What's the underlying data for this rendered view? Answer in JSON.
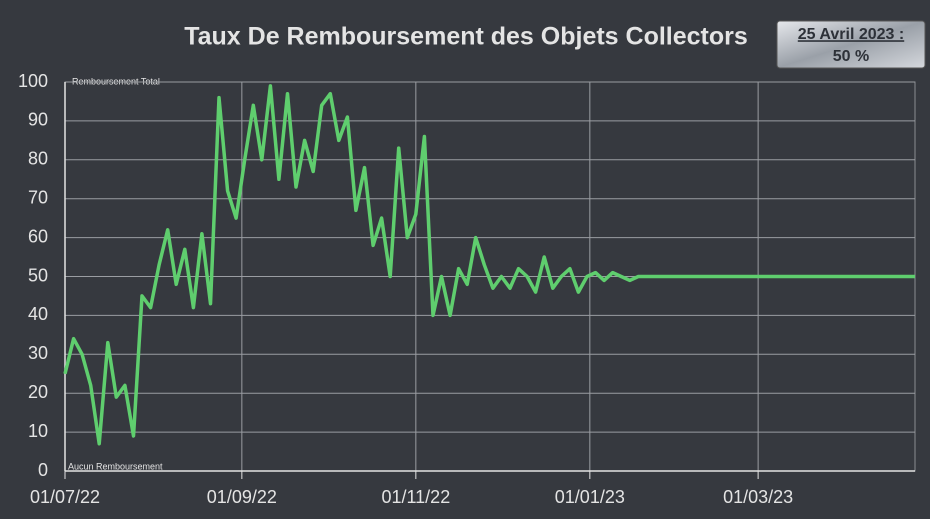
{
  "chart_data": {
    "type": "line",
    "title": "Taux De Remboursement des Objets Collectors",
    "badge": {
      "date": "25 Avril 2023 :",
      "value": "50 %"
    },
    "annotations": [
      "Remboursement Total",
      "Aucun Remboursement"
    ],
    "x": [
      "2022-07-01",
      "2022-07-04",
      "2022-07-07",
      "2022-07-10",
      "2022-07-13",
      "2022-07-16",
      "2022-07-19",
      "2022-07-22",
      "2022-07-25",
      "2022-07-28",
      "2022-07-31",
      "2022-08-03",
      "2022-08-06",
      "2022-08-09",
      "2022-08-12",
      "2022-08-15",
      "2022-08-18",
      "2022-08-21",
      "2022-08-24",
      "2022-08-27",
      "2022-08-30",
      "2022-09-02",
      "2022-09-05",
      "2022-09-08",
      "2022-09-11",
      "2022-09-14",
      "2022-09-17",
      "2022-09-20",
      "2022-09-23",
      "2022-09-26",
      "2022-09-29",
      "2022-10-02",
      "2022-10-05",
      "2022-10-08",
      "2022-10-11",
      "2022-10-14",
      "2022-10-17",
      "2022-10-20",
      "2022-10-23",
      "2022-10-26",
      "2022-10-29",
      "2022-11-01",
      "2022-11-04",
      "2022-11-07",
      "2022-11-10",
      "2022-11-13",
      "2022-11-16",
      "2022-11-19",
      "2022-11-22",
      "2022-11-25",
      "2022-11-28",
      "2022-12-01",
      "2022-12-04",
      "2022-12-07",
      "2022-12-10",
      "2022-12-13",
      "2022-12-16",
      "2022-12-19",
      "2022-12-22",
      "2022-12-25",
      "2022-12-28",
      "2022-12-31",
      "2023-01-03",
      "2023-01-06",
      "2023-01-09",
      "2023-01-12",
      "2023-01-15",
      "2023-01-18",
      "2023-01-21",
      "2023-04-25"
    ],
    "series": [
      {
        "name": "Taux",
        "color": "#5fce6e",
        "values": [
          25,
          34,
          30,
          22,
          7,
          33,
          19,
          22,
          9,
          45,
          42,
          53,
          62,
          48,
          57,
          42,
          61,
          43,
          96,
          72,
          65,
          80,
          94,
          80,
          99,
          75,
          97,
          73,
          85,
          77,
          94,
          97,
          85,
          91,
          67,
          78,
          58,
          65,
          50,
          83,
          60,
          66,
          86,
          40,
          50,
          40,
          52,
          48,
          60,
          53,
          47,
          50,
          47,
          52,
          50,
          46,
          55,
          47,
          50,
          52,
          46,
          50,
          51,
          49,
          51,
          50,
          49,
          50,
          50,
          50
        ]
      }
    ],
    "xlim": [
      "2022-07-01",
      "2023-04-25"
    ],
    "xticks": [
      {
        "value": "2022-07-01",
        "label": "01/07/22"
      },
      {
        "value": "2022-09-01",
        "label": "01/09/22"
      },
      {
        "value": "2022-11-01",
        "label": "01/11/22"
      },
      {
        "value": "2023-01-01",
        "label": "01/01/23"
      },
      {
        "value": "2023-03-01",
        "label": "01/03/23"
      }
    ],
    "ylim": [
      0,
      100
    ],
    "yticks": [
      0,
      10,
      20,
      30,
      40,
      50,
      60,
      70,
      80,
      90,
      100
    ],
    "grid": true
  }
}
